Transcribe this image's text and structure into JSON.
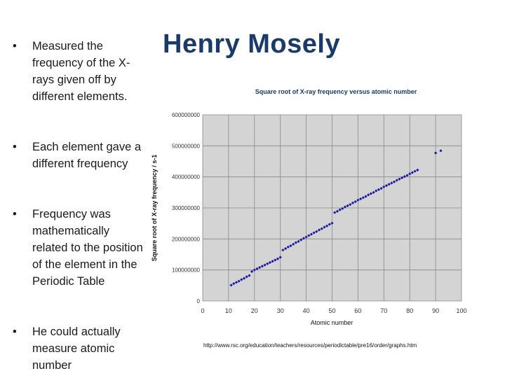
{
  "bullets": [
    {
      "text": "Measured the frequency of the X-rays given off by different elements."
    },
    {
      "text": "Each element gave a different frequency"
    },
    {
      "text": "Frequency was mathematically related to the position of the element in the Periodic Table"
    },
    {
      "text": "He could actually measure atomic number"
    }
  ],
  "slide_title": "Henry Mosely",
  "source_url": "http://www.rsc.org/education/teachers/resources/periodictable/pre16/order/graphs.htm",
  "chart_data": {
    "type": "scatter",
    "title": "Square root of X-ray frequency versus atomic number",
    "xlabel": "Atomic number",
    "ylabel": "Square root of X-ray frequency / s-1",
    "xlim": [
      0,
      100
    ],
    "ylim": [
      0,
      600000000
    ],
    "xticks": [
      0,
      10,
      20,
      30,
      40,
      50,
      60,
      70,
      80,
      90,
      100
    ],
    "yticks": [
      0,
      100000000,
      200000000,
      300000000,
      400000000,
      500000000,
      600000000
    ],
    "ytick_labels": [
      "0",
      "100000000",
      "200000000",
      "300000000",
      "400000000",
      "500000000",
      "600000000"
    ],
    "grid": true,
    "plot_bg": "#d4d4d4",
    "grid_color": "#888888",
    "marker_color": "#1a1aa0",
    "series": [
      {
        "x": [
          11,
          12,
          13,
          14,
          15,
          16,
          17,
          18,
          19,
          20,
          21,
          22,
          23,
          24,
          25,
          26,
          27,
          28,
          29,
          30,
          31,
          32,
          33,
          34,
          35,
          36,
          37,
          38,
          39,
          40,
          41,
          42,
          43,
          44,
          45,
          46,
          47,
          48,
          49,
          50,
          51,
          52,
          53,
          54,
          55,
          56,
          57,
          58,
          59,
          60,
          61,
          62,
          63,
          64,
          65,
          66,
          67,
          68,
          69,
          70,
          71,
          72,
          73,
          74,
          75,
          76,
          77,
          78,
          79,
          80,
          81,
          82,
          83,
          90,
          92
        ],
        "y": [
          51000000,
          56000000,
          60000000,
          64000000,
          69000000,
          73000000,
          78000000,
          82000000,
          95000000,
          100000000,
          104000000,
          108000000,
          112000000,
          116000000,
          120000000,
          124000000,
          128000000,
          132000000,
          136000000,
          141000000,
          164000000,
          169000000,
          174000000,
          178000000,
          183000000,
          188000000,
          192000000,
          197000000,
          202000000,
          206000000,
          211000000,
          215000000,
          220000000,
          224000000,
          229000000,
          233000000,
          238000000,
          242000000,
          247000000,
          251000000,
          285000000,
          289000000,
          294000000,
          298000000,
          303000000,
          307000000,
          311000000,
          316000000,
          320000000,
          325000000,
          329000000,
          333000000,
          337000000,
          342000000,
          346000000,
          350000000,
          355000000,
          359000000,
          363000000,
          368000000,
          372000000,
          376000000,
          380000000,
          384000000,
          389000000,
          393000000,
          397000000,
          401000000,
          405000000,
          410000000,
          414000000,
          418000000,
          422000000,
          477000000,
          484000000
        ]
      }
    ]
  }
}
